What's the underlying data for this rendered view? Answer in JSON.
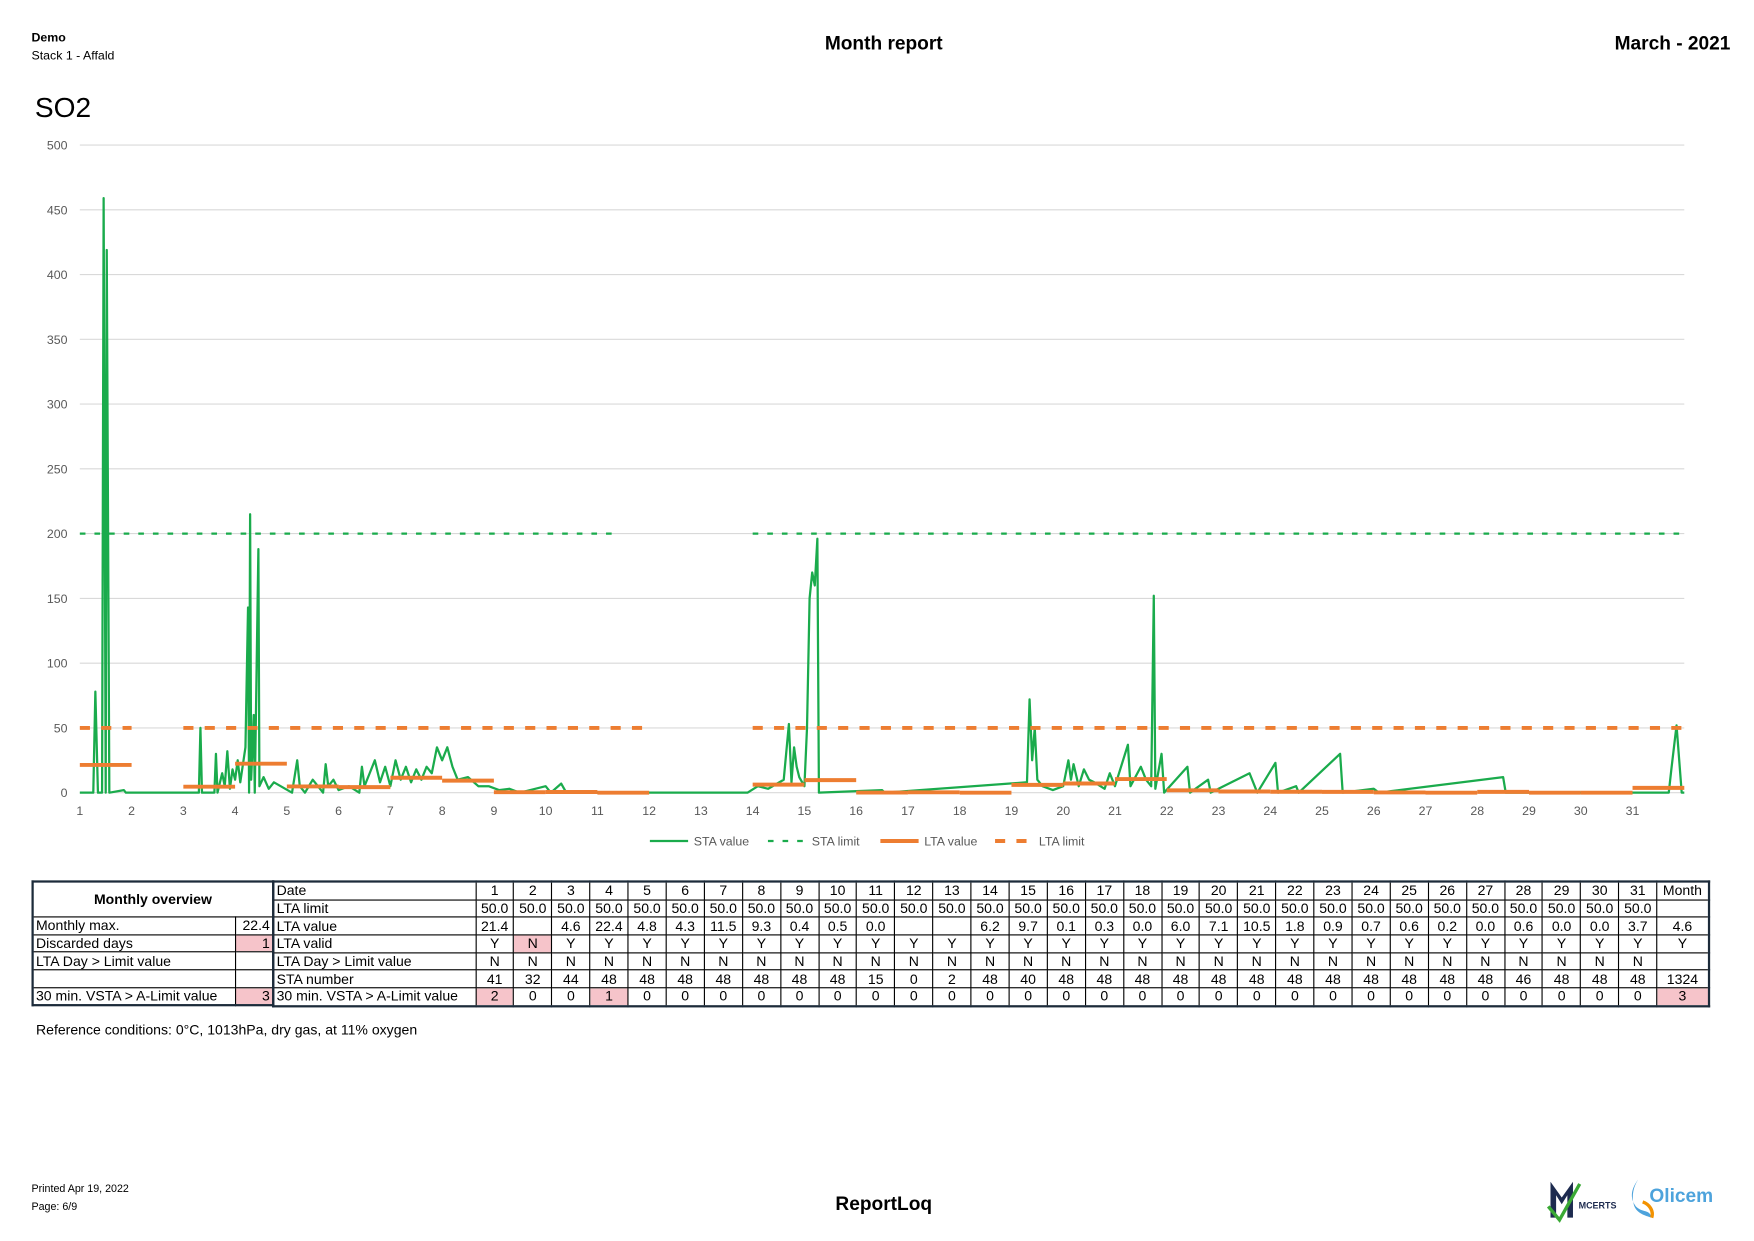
{
  "header": {
    "company": "Demo",
    "stack": "Stack 1 - Affald",
    "title": "Month report",
    "period": "March - 2021"
  },
  "chart_data": {
    "type": "line",
    "title": "SO2",
    "xlim": [
      1,
      32
    ],
    "xticks": [
      1,
      2,
      3,
      4,
      5,
      6,
      7,
      8,
      9,
      10,
      11,
      12,
      13,
      14,
      15,
      16,
      17,
      18,
      19,
      20,
      21,
      22,
      23,
      24,
      25,
      26,
      27,
      28,
      29,
      30,
      31
    ],
    "ylim": [
      0,
      500
    ],
    "yticks": [
      0,
      50,
      100,
      150,
      200,
      250,
      300,
      350,
      400,
      450,
      500
    ],
    "grid": true,
    "legend": "bottom",
    "series": [
      {
        "name": "STA value",
        "color": "#1aab4c",
        "style": "solid",
        "width": 2,
        "x": [
          1,
          1.26,
          1.3,
          1.35,
          1.43,
          1.46,
          1.5,
          1.52,
          1.57,
          1.85,
          1.89,
          3.3,
          3.33,
          3.36,
          3.6,
          3.63,
          3.66,
          3.75,
          3.8,
          3.85,
          3.9,
          3.95,
          4.0,
          4.05,
          4.1,
          4.2,
          4.25,
          4.27,
          4.29,
          4.31,
          4.36,
          4.38,
          4.45,
          4.47,
          4.55,
          4.65,
          4.75,
          5.1,
          5.2,
          5.25,
          5.35,
          5.5,
          5.7,
          5.75,
          5.8,
          5.9,
          6.0,
          6.2,
          6.4,
          6.45,
          6.5,
          6.6,
          6.7,
          6.8,
          6.9,
          7.0,
          7.1,
          7.2,
          7.3,
          7.4,
          7.5,
          7.6,
          7.7,
          7.8,
          7.9,
          8.0,
          8.1,
          8.2,
          8.3,
          8.5,
          8.7,
          8.9,
          9.1,
          9.3,
          9.5,
          10.0,
          10.1,
          10.3,
          10.4,
          13.9,
          14.1,
          14.3,
          14.6,
          14.7,
          14.75,
          14.8,
          14.85,
          14.9,
          15.0,
          15.05,
          15.1,
          15.15,
          15.2,
          15.25,
          15.28,
          16.5,
          16.55,
          19.3,
          19.35,
          19.4,
          19.45,
          19.5,
          19.6,
          19.8,
          20.0,
          20.1,
          20.15,
          20.2,
          20.3,
          20.4,
          20.5,
          20.6,
          20.8,
          20.9,
          21.0,
          21.25,
          21.3,
          21.5,
          21.6,
          21.7,
          21.75,
          21.78,
          21.9,
          21.95,
          22.4,
          22.45,
          22.8,
          22.85,
          23.6,
          23.7,
          23.75,
          24.1,
          24.15,
          24.5,
          24.55,
          25.35,
          25.4,
          26.0,
          26.1,
          28.5,
          28.55,
          31.7,
          31.75,
          31.85,
          31.95,
          32
        ],
        "values": [
          0,
          0,
          78,
          0,
          0,
          459,
          0,
          419,
          0,
          2,
          0,
          0,
          50,
          0,
          0,
          30,
          0,
          15,
          5,
          32,
          3,
          18,
          10,
          25,
          8,
          35,
          143,
          0,
          215,
          10,
          60,
          0,
          188,
          5,
          12,
          3,
          8,
          0,
          25,
          5,
          0,
          10,
          0,
          22,
          5,
          10,
          2,
          5,
          0,
          20,
          5,
          15,
          25,
          8,
          20,
          5,
          25,
          10,
          20,
          8,
          18,
          10,
          20,
          15,
          35,
          25,
          35,
          20,
          10,
          12,
          5,
          5,
          2,
          3,
          0,
          5,
          0,
          7,
          0,
          0,
          5,
          3,
          10,
          53,
          8,
          35,
          20,
          12,
          5,
          50,
          150,
          170,
          160,
          196,
          0,
          2,
          0,
          8,
          72,
          25,
          50,
          10,
          5,
          2,
          5,
          25,
          10,
          22,
          5,
          18,
          10,
          8,
          3,
          15,
          5,
          37,
          5,
          20,
          10,
          5,
          152,
          3,
          30,
          0,
          20,
          0,
          10,
          0,
          15,
          5,
          0,
          23,
          0,
          5,
          0,
          30,
          0,
          3,
          0,
          12,
          0,
          0,
          18,
          52,
          0,
          0
        ]
      },
      {
        "name": "STA limit",
        "color": "#1aab4c",
        "style": "dashed",
        "width": 2,
        "x": [
          1,
          11.3,
          12.5,
          14,
          32
        ],
        "values": [
          200,
          200,
          null,
          200,
          200
        ]
      },
      {
        "name": "LTA value",
        "color": "#ed7d31",
        "style": "step",
        "width": 3.5,
        "x": [
          1,
          2,
          3,
          4,
          5,
          6,
          7,
          8,
          9,
          10,
          11,
          12,
          13,
          14,
          15,
          16,
          17,
          18,
          19,
          20,
          21,
          22,
          23,
          24,
          25,
          26,
          27,
          28,
          29,
          30,
          31
        ],
        "values": [
          21.4,
          null,
          4.6,
          22.4,
          4.8,
          4.3,
          11.5,
          9.3,
          0.4,
          0.5,
          0.0,
          null,
          null,
          6.2,
          9.7,
          0.1,
          0.3,
          0.0,
          6.0,
          7.1,
          10.5,
          1.8,
          0.9,
          0.7,
          0.6,
          0.2,
          0.0,
          0.6,
          0.0,
          0.0,
          3.7
        ]
      },
      {
        "name": "LTA limit",
        "color": "#ed7d31",
        "style": "dashed",
        "width": 3.5,
        "x": [
          1,
          2,
          2.5,
          3,
          12,
          13,
          14,
          32
        ],
        "values": [
          50,
          50,
          null,
          50,
          50,
          null,
          50,
          50
        ]
      }
    ]
  },
  "table": {
    "alert_color": "#f6c4ca",
    "overview": {
      "title": "Monthly overview",
      "rows": [
        {
          "label": "Monthly max.",
          "value": "22.4"
        },
        {
          "label": "Discarded days",
          "value": {
            "text": "1",
            "alert": true
          }
        },
        {
          "label": "LTA Day > Limit value",
          "value": null
        },
        {
          "label": "30 min. VSTA > A-Limit value",
          "value": {
            "text": "3",
            "alert": true
          }
        }
      ]
    },
    "header": {
      "label": "Date",
      "cells": [
        "1",
        "2",
        "3",
        "4",
        "5",
        "6",
        "7",
        "8",
        "9",
        "10",
        "11",
        "12",
        "13",
        "14",
        "15",
        "16",
        "17",
        "18",
        "19",
        "20",
        "21",
        "22",
        "23",
        "24",
        "25",
        "26",
        "27",
        "28",
        "29",
        "30",
        "31",
        "Month"
      ]
    },
    "rows": [
      {
        "label": "LTA limit",
        "cells": [
          "50.0",
          "50.0",
          "50.0",
          "50.0",
          "50.0",
          "50.0",
          "50.0",
          "50.0",
          "50.0",
          "50.0",
          "50.0",
          "50.0",
          "50.0",
          "50.0",
          "50.0",
          "50.0",
          "50.0",
          "50.0",
          "50.0",
          "50.0",
          "50.0",
          "50.0",
          "50.0",
          "50.0",
          "50.0",
          "50.0",
          "50.0",
          "50.0",
          "50.0",
          "50.0",
          "50.0",
          null
        ]
      },
      {
        "label": "LTA value",
        "cells": [
          "21.4",
          null,
          "4.6",
          "22.4",
          "4.8",
          "4.3",
          "11.5",
          "9.3",
          "0.4",
          "0.5",
          "0.0",
          null,
          null,
          "6.2",
          "9.7",
          "0.1",
          "0.3",
          "0.0",
          "6.0",
          "7.1",
          "10.5",
          "1.8",
          "0.9",
          "0.7",
          "0.6",
          "0.2",
          "0.0",
          "0.6",
          "0.0",
          "0.0",
          "3.7",
          "4.6"
        ]
      },
      {
        "label": "LTA valid",
        "cells": [
          "Y",
          {
            "text": "N",
            "alert": true
          },
          "Y",
          "Y",
          "Y",
          "Y",
          "Y",
          "Y",
          "Y",
          "Y",
          "Y",
          "Y",
          "Y",
          "Y",
          "Y",
          "Y",
          "Y",
          "Y",
          "Y",
          "Y",
          "Y",
          "Y",
          "Y",
          "Y",
          "Y",
          "Y",
          "Y",
          "Y",
          "Y",
          "Y",
          "Y",
          "Y"
        ]
      },
      {
        "label": "LTA Day > Limit value",
        "cells": [
          "N",
          "N",
          "N",
          "N",
          "N",
          "N",
          "N",
          "N",
          "N",
          "N",
          "N",
          "N",
          "N",
          "N",
          "N",
          "N",
          "N",
          "N",
          "N",
          "N",
          "N",
          "N",
          "N",
          "N",
          "N",
          "N",
          "N",
          "N",
          "N",
          "N",
          "N",
          null
        ]
      },
      {
        "label": "STA number",
        "cells": [
          "41",
          "32",
          "44",
          "48",
          "48",
          "48",
          "48",
          "48",
          "48",
          "48",
          "15",
          "0",
          "2",
          "48",
          "40",
          "48",
          "48",
          "48",
          "48",
          "48",
          "48",
          "48",
          "48",
          "48",
          "48",
          "48",
          "48",
          "46",
          "48",
          "48",
          "48",
          "1324"
        ]
      },
      {
        "label": "30 min. VSTA > A-Limit value",
        "cells": [
          {
            "text": "2",
            "alert": true
          },
          "0",
          "0",
          {
            "text": "1",
            "alert": true
          },
          "0",
          "0",
          "0",
          "0",
          "0",
          "0",
          "0",
          "0",
          "0",
          "0",
          "0",
          "0",
          "0",
          "0",
          "0",
          "0",
          "0",
          "0",
          "0",
          "0",
          "0",
          "0",
          "0",
          "0",
          "0",
          "0",
          "0",
          {
            "text": "3",
            "alert": true
          }
        ]
      }
    ]
  },
  "reference": "Reference conditions: 0°C, 1013hPa, dry gas, at 11% oxygen",
  "footer": {
    "printed": "Printed Apr 19, 2022",
    "page": "Page: 6/9",
    "product": "ReportLoq",
    "logos": [
      "MCERTS",
      "Olicem"
    ]
  }
}
